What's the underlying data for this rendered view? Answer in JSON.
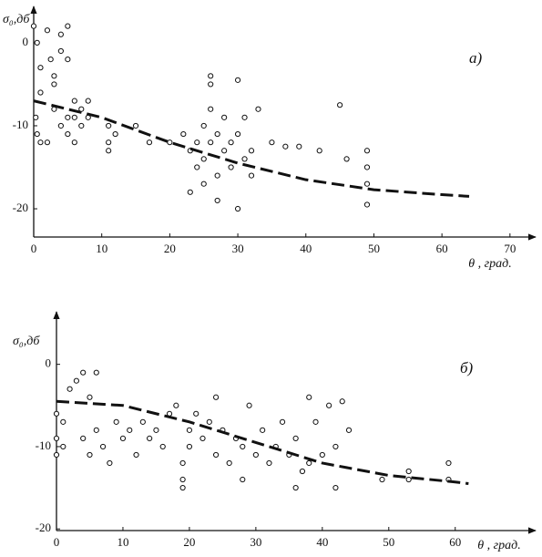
{
  "chart_data": [
    {
      "type": "scatter",
      "label": "а)",
      "ylabel": "σ₀,дб",
      "xlabel": "θ , град.",
      "xlim": [
        0,
        72.7
      ],
      "ylim": [
        -23.4,
        3.5
      ],
      "xticks": [
        0,
        10,
        20,
        30,
        40,
        50,
        60,
        70
      ],
      "yticks": [
        -20,
        -10,
        0
      ],
      "series": [
        {
          "color": "#111",
          "marker": "circle",
          "x": [
            0,
            0.5,
            1,
            1,
            0.3,
            0.5,
            1,
            2,
            2.5,
            3,
            3,
            4,
            4,
            5,
            3,
            4,
            5,
            5,
            6,
            6,
            7,
            7,
            8,
            8,
            5,
            6,
            2,
            11,
            11,
            11,
            12,
            15,
            17,
            20,
            22,
            23,
            24,
            24,
            25,
            25,
            25,
            26,
            26,
            26,
            26,
            27,
            27,
            28,
            28,
            29,
            29,
            30,
            30,
            30,
            31,
            31,
            32,
            32,
            33,
            35,
            37,
            39,
            42,
            45,
            46,
            49,
            49,
            49,
            49,
            23,
            27
          ],
          "values": [
            2,
            0,
            -3,
            -6,
            -9,
            -11,
            -12,
            1.5,
            -2,
            -4,
            -5,
            1,
            -1,
            -2,
            -8,
            -10,
            -9,
            -11,
            -7,
            -9,
            -8,
            -10,
            -9,
            -7,
            2,
            -12,
            -12,
            -10,
            -12,
            -13,
            -11,
            -10,
            -12,
            -12,
            -11,
            -13,
            -12,
            -15,
            -10,
            -14,
            -17,
            -4,
            -5,
            -12,
            -8,
            -11,
            -16,
            -13,
            -9,
            -15,
            -12,
            -4.5,
            -20,
            -11,
            -14,
            -9,
            -13,
            -16,
            -8,
            -12,
            -12.5,
            -12.5,
            -13,
            -7.5,
            -14,
            -13,
            -15,
            -17,
            -19.5,
            -18,
            -19
          ]
        },
        {
          "color": "#111",
          "line": "dashed",
          "x": [
            0,
            10,
            20,
            30,
            40,
            50,
            60,
            64
          ],
          "values": [
            -7,
            -9,
            -12,
            -14.5,
            -16.5,
            -17.7,
            -18.3,
            -18.5
          ]
        }
      ]
    },
    {
      "type": "scatter",
      "label": "б)",
      "ylabel": "σ₀,дб",
      "xlabel": "θ , град.",
      "xlim": [
        0,
        71
      ],
      "ylim": [
        -20.2,
        5.5
      ],
      "xticks": [
        0,
        10,
        20,
        30,
        40,
        50,
        60
      ],
      "yticks": [
        -20,
        -10,
        0
      ],
      "series": [
        {
          "color": "#111",
          "marker": "circle",
          "x": [
            0,
            0,
            0,
            1,
            1,
            2,
            3,
            4,
            5,
            6,
            4,
            5,
            6,
            7,
            8,
            9,
            10,
            11,
            12,
            13,
            14,
            15,
            16,
            17,
            18,
            19,
            19,
            19,
            20,
            20,
            21,
            22,
            23,
            24,
            24,
            25,
            26,
            27,
            28,
            28,
            29,
            30,
            31,
            32,
            33,
            34,
            35,
            36,
            37,
            38,
            38,
            39,
            40,
            41,
            42,
            43,
            44,
            36,
            42,
            49,
            53,
            53,
            59,
            59
          ],
          "values": [
            -6,
            -9,
            -11,
            -7,
            -10,
            -3,
            -2,
            -1,
            -4,
            -1,
            -9,
            -11,
            -8,
            -10,
            -12,
            -7,
            -9,
            -8,
            -11,
            -7,
            -9,
            -8,
            -10,
            -6,
            -5,
            -12,
            -14,
            -15,
            -10,
            -8,
            -6,
            -9,
            -7,
            -4,
            -11,
            -8,
            -12,
            -9,
            -14,
            -10,
            -5,
            -11,
            -8,
            -12,
            -10,
            -7,
            -11,
            -9,
            -13,
            -4,
            -12,
            -7,
            -11,
            -5,
            -10,
            -4.5,
            -8,
            -15,
            -15,
            -14,
            -13,
            -14,
            -12,
            -14
          ]
        },
        {
          "color": "#111",
          "line": "dashed",
          "x": [
            0,
            10,
            20,
            30,
            40,
            50,
            60,
            62
          ],
          "values": [
            -4.5,
            -5,
            -7,
            -9.5,
            -12,
            -13.5,
            -14.3,
            -14.5
          ]
        }
      ]
    }
  ]
}
